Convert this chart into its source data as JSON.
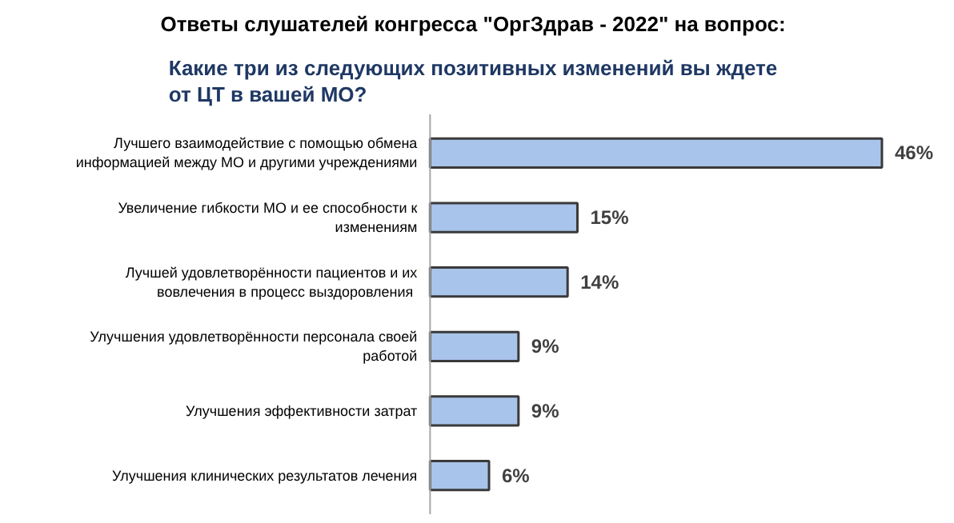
{
  "chart_data": {
    "type": "bar",
    "orientation": "horizontal",
    "title": "Ответы слушателей конгресса \"ОргЗдрав - 2022\" на вопрос:",
    "subtitle": "Какие три из следующих позитивных изменений вы ждете от ЦТ в вашей МО?",
    "categories": [
      "Лучшего взаимодействие с помощью обмена информацией между МО и другими учреждениями",
      "Увеличение гибкости МО и ее способности к изменениям",
      "Лучшей удовлетворённости пациентов и их вовлечения в процесс  выздоровления",
      "Улучшения удовлетворённости персонала своей работой",
      "Улучшения эффективности затрат",
      "Улучшения клинических результатов лечения"
    ],
    "values": [
      46,
      15,
      14,
      9,
      9,
      6
    ],
    "value_labels": [
      "46%",
      "15%",
      "14%",
      "9%",
      "9%",
      "6%"
    ],
    "color": "#a9c4eb"
  }
}
